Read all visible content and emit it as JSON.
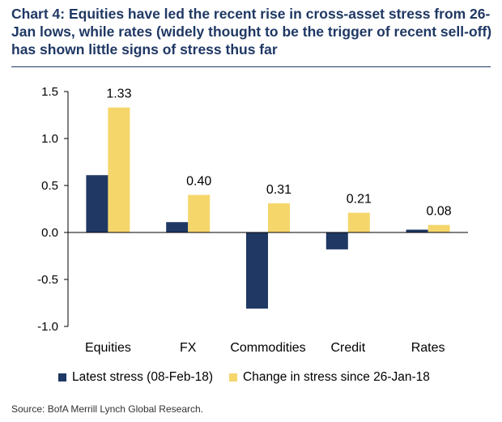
{
  "title": "Chart 4: Equities have led the recent rise in cross-asset stress from 26-Jan lows, while rates (widely thought to be the trigger of recent sell-off) has shown little signs of stress thus far",
  "source": "Source: BofA Merrill Lynch Global Research.",
  "colors": {
    "navy": "#1f3864",
    "gold": "#f5d66b"
  },
  "chart_data": {
    "type": "bar",
    "categories": [
      "Equities",
      "FX",
      "Commodities",
      "Credit",
      "Rates"
    ],
    "series": [
      {
        "name": "Latest stress (08-Feb-18)",
        "values": [
          0.61,
          0.11,
          -0.81,
          -0.18,
          0.03
        ],
        "color": "#1f3864",
        "labels": [
          "",
          "",
          "",
          "",
          ""
        ]
      },
      {
        "name": "Change in stress since 26-Jan-18",
        "values": [
          1.33,
          0.4,
          0.31,
          0.21,
          0.08
        ],
        "color": "#f5d66b",
        "labels": [
          "1.33",
          "0.40",
          "0.31",
          "0.21",
          "0.08"
        ]
      }
    ],
    "yticks": [
      "1.5",
      "1.0",
      "0.5",
      "0.0",
      "-0.5",
      "-1.0"
    ],
    "ytick_values": [
      1.5,
      1.0,
      0.5,
      0.0,
      -0.5,
      -1.0
    ],
    "ylim": [
      -1.0,
      1.5
    ],
    "legend_position": "bottom",
    "grid": false
  }
}
